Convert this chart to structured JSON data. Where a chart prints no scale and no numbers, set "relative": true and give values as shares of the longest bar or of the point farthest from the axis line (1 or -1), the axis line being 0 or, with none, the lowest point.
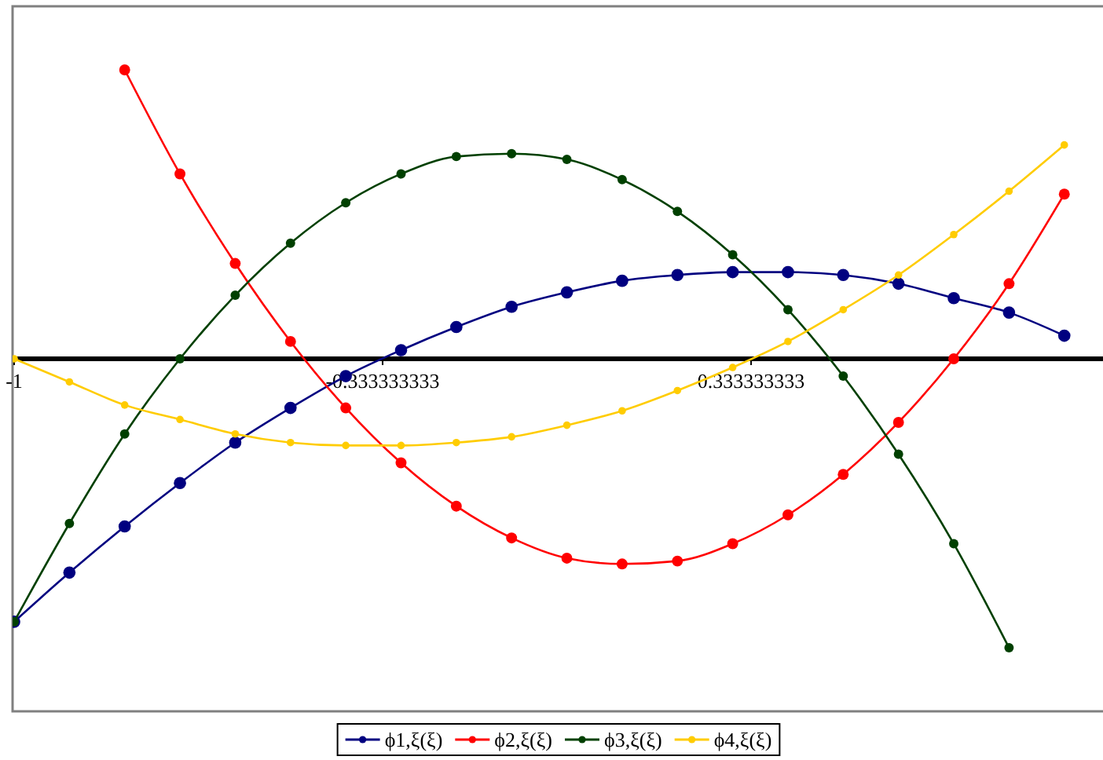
{
  "chart_data": {
    "type": "line",
    "relative": true,
    "x": [
      -1,
      -0.9,
      -0.8,
      -0.7,
      -0.6,
      -0.5,
      -0.4,
      -0.3,
      -0.2,
      -0.1,
      0,
      0.1,
      0.2,
      0.3,
      0.4,
      0.5,
      0.6,
      0.7,
      0.8,
      0.9
    ],
    "xlim": [
      -1,
      0.97
    ],
    "xticks": [
      -1,
      -0.333333333,
      0.333333333
    ],
    "series": [
      {
        "name": "ϕ1,ξ(ξ)",
        "color": "#000080",
        "values": [
          -0.91,
          -0.74,
          -0.58,
          -0.43,
          -0.29,
          -0.17,
          -0.06,
          0.03,
          0.11,
          0.18,
          0.23,
          0.27,
          0.29,
          0.3,
          0.3,
          0.29,
          0.26,
          0.21,
          0.16,
          0.08
        ]
      },
      {
        "name": "ϕ2,ξ(ξ)",
        "color": "#ff0000",
        "values": [
          null,
          null,
          1.0,
          0.64,
          0.33,
          0.06,
          -0.17,
          -0.36,
          -0.51,
          -0.62,
          -0.69,
          -0.71,
          -0.7,
          -0.64,
          -0.54,
          -0.4,
          -0.22,
          0.0,
          0.26,
          0.57
        ]
      },
      {
        "name": "ϕ3,ξ(ξ)",
        "color": "#004000",
        "values": [
          -0.91,
          -0.57,
          -0.26,
          0.0,
          0.22,
          0.4,
          0.54,
          0.64,
          0.7,
          0.71,
          0.69,
          0.62,
          0.51,
          0.36,
          0.17,
          -0.06,
          -0.33,
          -0.64,
          -1.0,
          null
        ]
      },
      {
        "name": "ϕ4,ξ(ξ)",
        "color": "#ffcc00",
        "values": [
          0,
          -0.08,
          -0.16,
          -0.21,
          -0.26,
          -0.29,
          -0.3,
          -0.3,
          -0.29,
          -0.27,
          -0.23,
          -0.18,
          -0.11,
          -0.03,
          0.06,
          0.17,
          0.29,
          0.43,
          0.58,
          0.74
        ]
      }
    ],
    "marker": "circle",
    "line_style": "solid",
    "legend": "bottom"
  }
}
